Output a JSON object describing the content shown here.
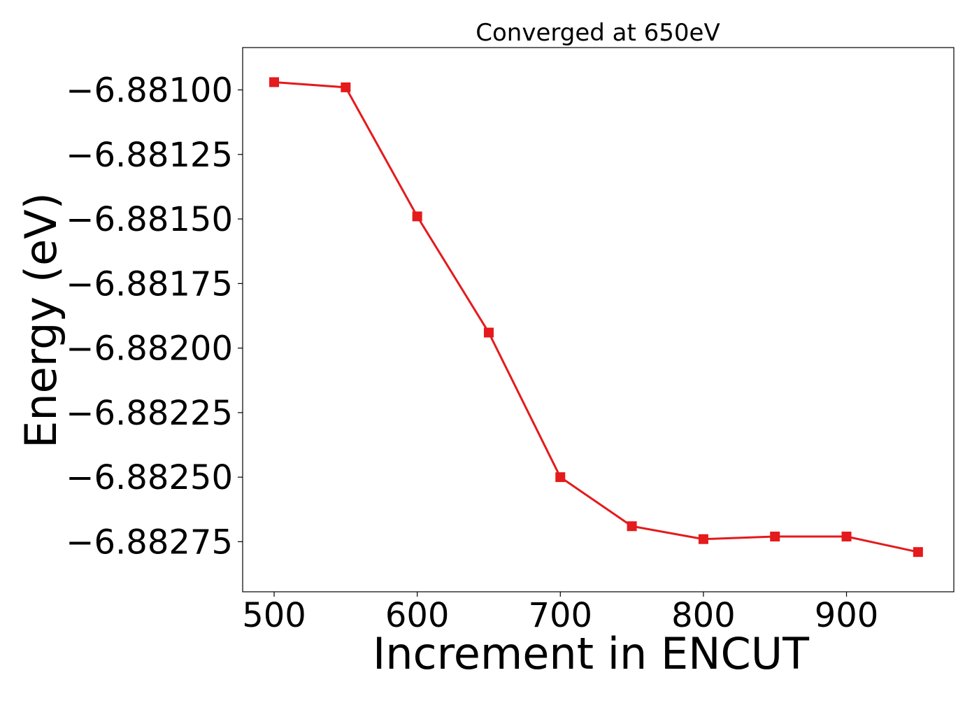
{
  "chart_data": {
    "type": "line",
    "title": "Converged at 650eV",
    "xlabel": "Increment in ENCUT",
    "ylabel": "Energy (eV)",
    "xlim": [
      478,
      975
    ],
    "ylim": [
      -6.882944,
      -6.880836
    ],
    "xticks": [
      500,
      600,
      700,
      800,
      900
    ],
    "xtick_labels": [
      "500",
      "600",
      "700",
      "800",
      "900"
    ],
    "yticks": [
      -6.881,
      -6.88125,
      -6.8815,
      -6.88175,
      -6.882,
      -6.88225,
      -6.8825,
      -6.88275
    ],
    "ytick_labels": [
      "−6.88100",
      "−6.88125",
      "−6.88150",
      "−6.88175",
      "−6.88200",
      "−6.88225",
      "−6.88250",
      "−6.88275"
    ],
    "grid": false,
    "legend": "none",
    "series": [
      {
        "color": "#e41a1c",
        "marker": "square",
        "x": [
          500,
          550,
          600,
          650,
          700,
          750,
          800,
          850,
          900,
          950
        ],
        "y": [
          -6.88097,
          -6.88099,
          -6.88149,
          -6.88194,
          -6.8825,
          -6.88269,
          -6.88274,
          -6.88273,
          -6.88273,
          -6.88279
        ]
      }
    ]
  }
}
